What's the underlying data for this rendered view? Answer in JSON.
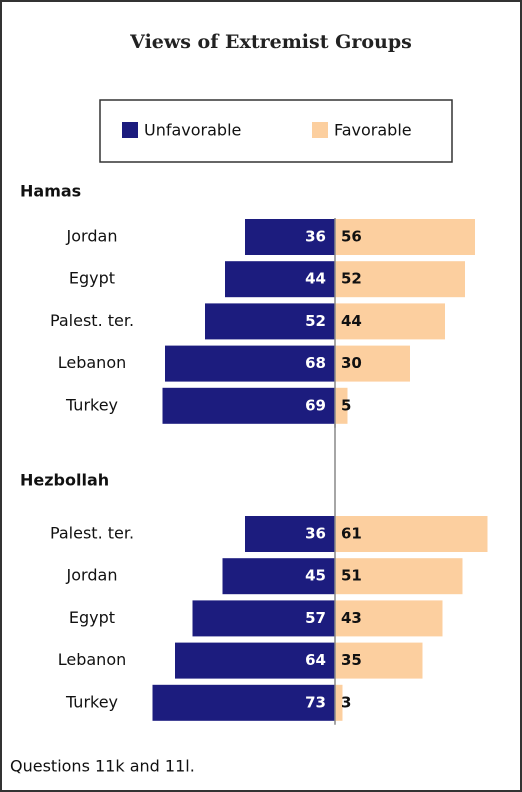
{
  "chart_data": {
    "type": "bar",
    "title": "Views of Extremist Groups",
    "series": [
      {
        "name": "Unfavorable",
        "color": "#1c1c7e"
      },
      {
        "name": "Favorable",
        "color": "#fccf9f"
      }
    ],
    "panels": [
      {
        "title": "Hamas",
        "categories": [
          "Jordan",
          "Egypt",
          "Palest. ter.",
          "Lebanon",
          "Turkey"
        ],
        "series": [
          {
            "values": [
              36,
              44,
              52,
              68,
              69
            ]
          },
          {
            "values": [
              56,
              52,
              44,
              30,
              5
            ]
          }
        ]
      },
      {
        "title": "Hezbollah",
        "categories": [
          "Palest. ter.",
          "Jordan",
          "Egypt",
          "Lebanon",
          "Turkey"
        ],
        "series": [
          {
            "values": [
              36,
              45,
              57,
              64,
              73
            ]
          },
          {
            "values": [
              61,
              51,
              43,
              35,
              3
            ]
          }
        ]
      }
    ],
    "note": "Questions 11k and 11l."
  }
}
